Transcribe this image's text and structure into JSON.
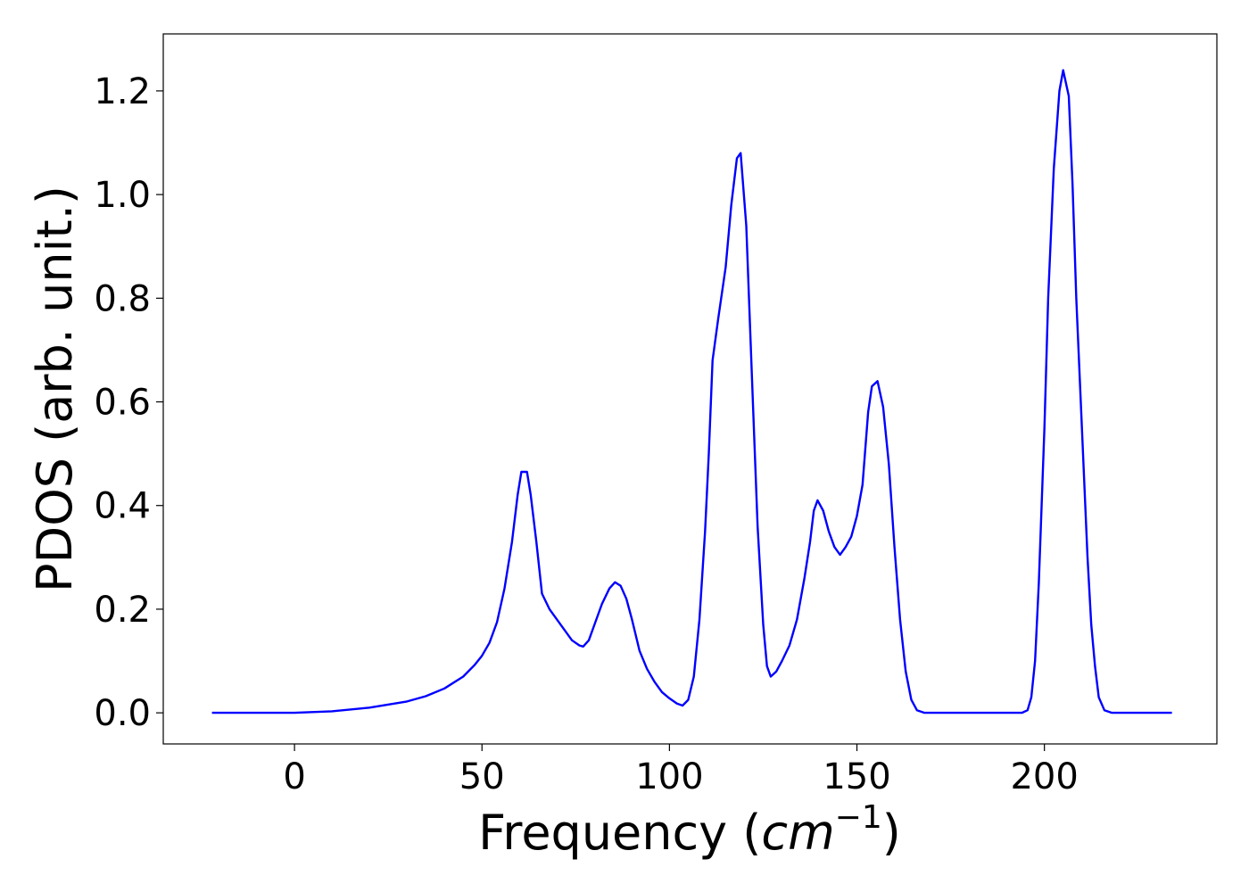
{
  "chart_data": {
    "type": "line",
    "title": "",
    "xlabel_text": "Frequency (",
    "xlabel_unit_base": "cm",
    "xlabel_unit_exp": "−1",
    "xlabel_close": ")",
    "ylabel": "PDOS (arb. unit.)",
    "xlim": [
      -35,
      246
    ],
    "ylim": [
      -0.06,
      1.31
    ],
    "xticks": [
      0,
      50,
      100,
      150,
      200
    ],
    "xtick_labels": [
      "0",
      "50",
      "100",
      "150",
      "200"
    ],
    "yticks": [
      0.0,
      0.2,
      0.4,
      0.6,
      0.8,
      1.0,
      1.2
    ],
    "ytick_labels": [
      "0.0",
      "0.2",
      "0.4",
      "0.6",
      "0.8",
      "1.0",
      "1.2"
    ],
    "grid": false,
    "series": [
      {
        "color": "#0000ff",
        "points": [
          [
            -22,
            0.0
          ],
          [
            0,
            0.0
          ],
          [
            10,
            0.003
          ],
          [
            20,
            0.01
          ],
          [
            30,
            0.022
          ],
          [
            35,
            0.032
          ],
          [
            40,
            0.047
          ],
          [
            45,
            0.07
          ],
          [
            48,
            0.092
          ],
          [
            50,
            0.11
          ],
          [
            52,
            0.135
          ],
          [
            54,
            0.175
          ],
          [
            56,
            0.24
          ],
          [
            58,
            0.33
          ],
          [
            59.5,
            0.42
          ],
          [
            60.5,
            0.465
          ],
          [
            62,
            0.465
          ],
          [
            63,
            0.42
          ],
          [
            64.5,
            0.33
          ],
          [
            66,
            0.23
          ],
          [
            68,
            0.2
          ],
          [
            70,
            0.18
          ],
          [
            72,
            0.16
          ],
          [
            74,
            0.14
          ],
          [
            76,
            0.13
          ],
          [
            77,
            0.128
          ],
          [
            78.5,
            0.14
          ],
          [
            80,
            0.17
          ],
          [
            82,
            0.21
          ],
          [
            84,
            0.24
          ],
          [
            85.5,
            0.252
          ],
          [
            87,
            0.245
          ],
          [
            88.5,
            0.22
          ],
          [
            90,
            0.18
          ],
          [
            92,
            0.12
          ],
          [
            94,
            0.085
          ],
          [
            96,
            0.06
          ],
          [
            98,
            0.04
          ],
          [
            100,
            0.028
          ],
          [
            102,
            0.018
          ],
          [
            103.5,
            0.014
          ],
          [
            105,
            0.025
          ],
          [
            106.5,
            0.07
          ],
          [
            108,
            0.18
          ],
          [
            109.5,
            0.35
          ],
          [
            110.5,
            0.5
          ],
          [
            111.5,
            0.68
          ],
          [
            113,
            0.76
          ],
          [
            115,
            0.86
          ],
          [
            116.5,
            0.98
          ],
          [
            118,
            1.07
          ],
          [
            119,
            1.08
          ],
          [
            120.5,
            0.94
          ],
          [
            122,
            0.65
          ],
          [
            123.5,
            0.36
          ],
          [
            125,
            0.17
          ],
          [
            126,
            0.09
          ],
          [
            127,
            0.07
          ],
          [
            128.5,
            0.08
          ],
          [
            130,
            0.1
          ],
          [
            132,
            0.13
          ],
          [
            134,
            0.18
          ],
          [
            136,
            0.26
          ],
          [
            137.5,
            0.33
          ],
          [
            138.5,
            0.39
          ],
          [
            139.5,
            0.41
          ],
          [
            141,
            0.39
          ],
          [
            142.5,
            0.35
          ],
          [
            144,
            0.32
          ],
          [
            145.5,
            0.305
          ],
          [
            147,
            0.32
          ],
          [
            148.5,
            0.34
          ],
          [
            150,
            0.38
          ],
          [
            151.5,
            0.44
          ],
          [
            153,
            0.58
          ],
          [
            154,
            0.63
          ],
          [
            155.5,
            0.64
          ],
          [
            157,
            0.59
          ],
          [
            158.5,
            0.48
          ],
          [
            160,
            0.32
          ],
          [
            161.5,
            0.18
          ],
          [
            163,
            0.08
          ],
          [
            164.5,
            0.025
          ],
          [
            166,
            0.005
          ],
          [
            168,
            0.0
          ],
          [
            180,
            0.0
          ],
          [
            194,
            0.0
          ],
          [
            195.5,
            0.005
          ],
          [
            196.5,
            0.03
          ],
          [
            197.5,
            0.1
          ],
          [
            198.5,
            0.25
          ],
          [
            200,
            0.55
          ],
          [
            201,
            0.8
          ],
          [
            202.5,
            1.05
          ],
          [
            204,
            1.2
          ],
          [
            205,
            1.24
          ],
          [
            206.5,
            1.19
          ],
          [
            207.5,
            1.02
          ],
          [
            208.5,
            0.8
          ],
          [
            210,
            0.55
          ],
          [
            211.5,
            0.3
          ],
          [
            212.5,
            0.17
          ],
          [
            213.5,
            0.09
          ],
          [
            214.5,
            0.03
          ],
          [
            216,
            0.005
          ],
          [
            218,
            0.0
          ],
          [
            234,
            0.0
          ]
        ]
      }
    ]
  }
}
